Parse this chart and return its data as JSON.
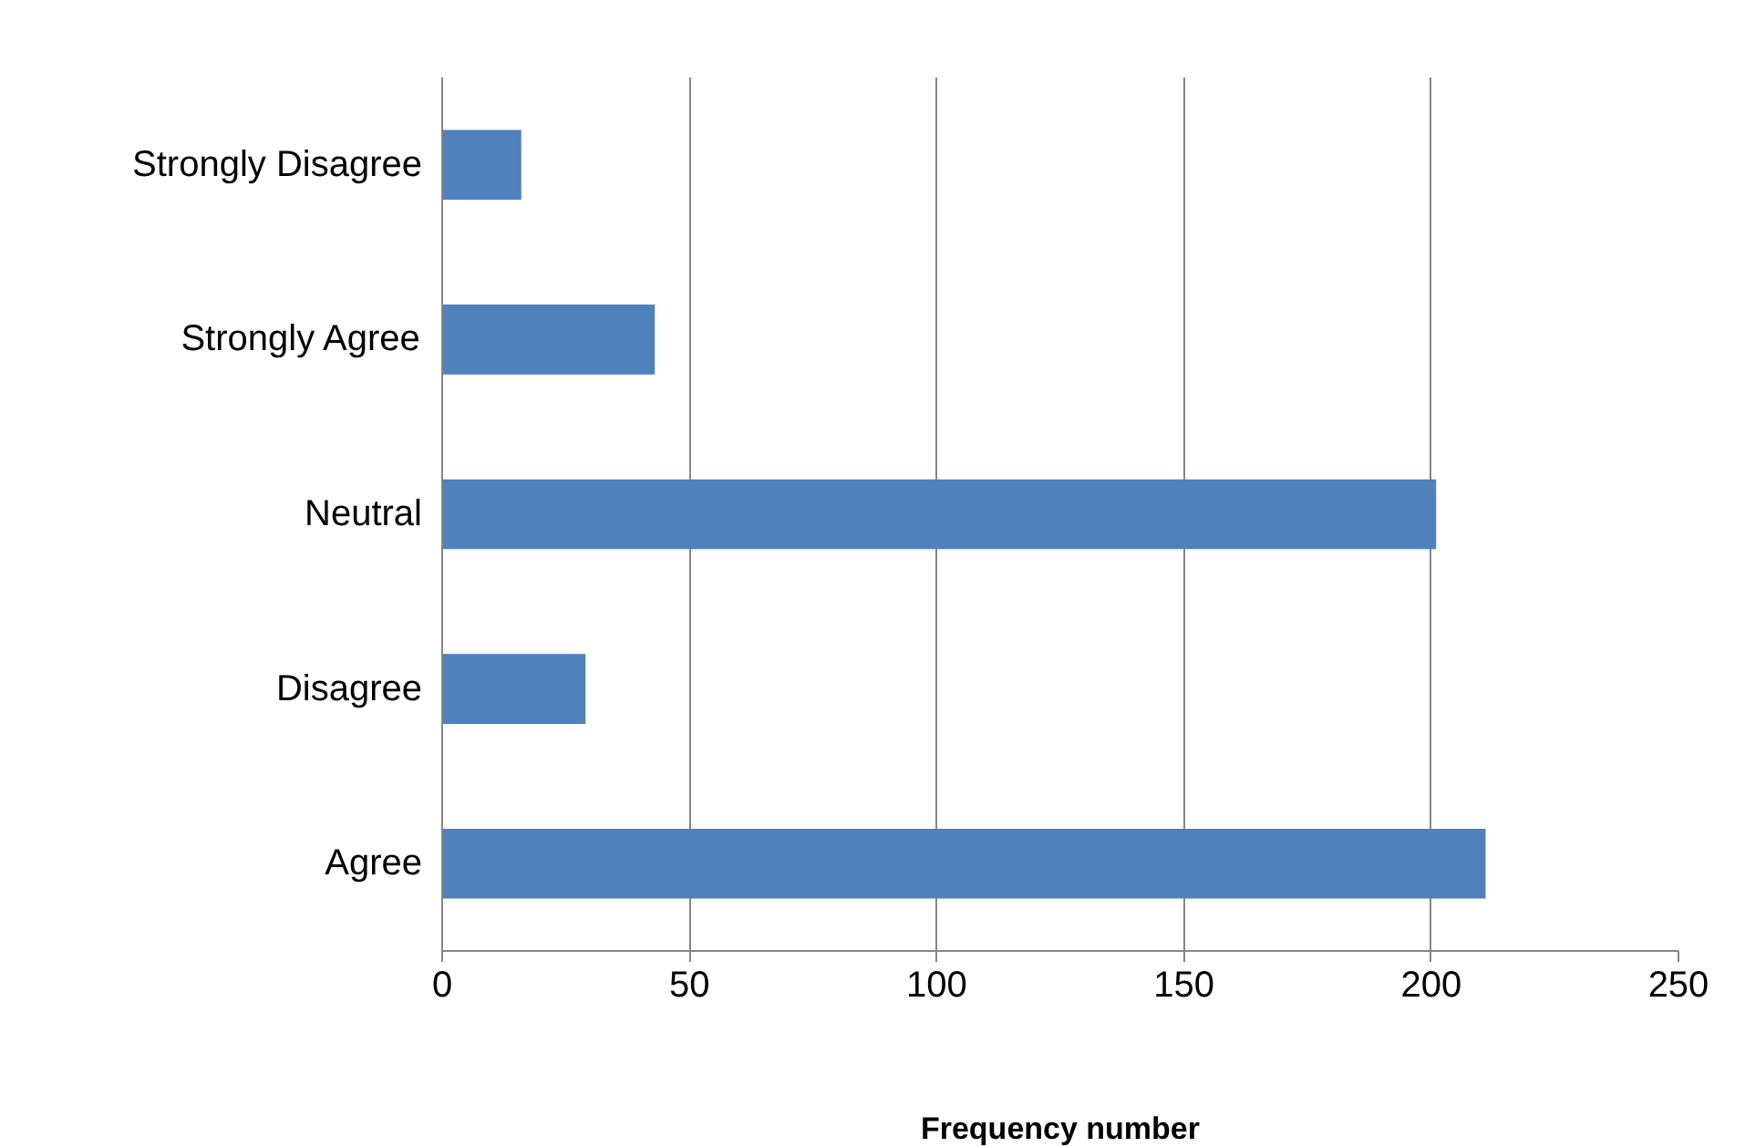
{
  "chart_data": {
    "type": "bar",
    "orientation": "horizontal",
    "xlabel": "Frequency number",
    "categories": [
      "Strongly Disagree",
      "Strongly Agree",
      "Neutral",
      "Disagree",
      "Agree"
    ],
    "values": [
      16,
      43,
      201,
      29,
      211
    ],
    "color": "#4f81bd",
    "xlim": [
      0,
      250
    ],
    "xticks": [
      0,
      50,
      100,
      150,
      200,
      250
    ],
    "grid": "x"
  }
}
